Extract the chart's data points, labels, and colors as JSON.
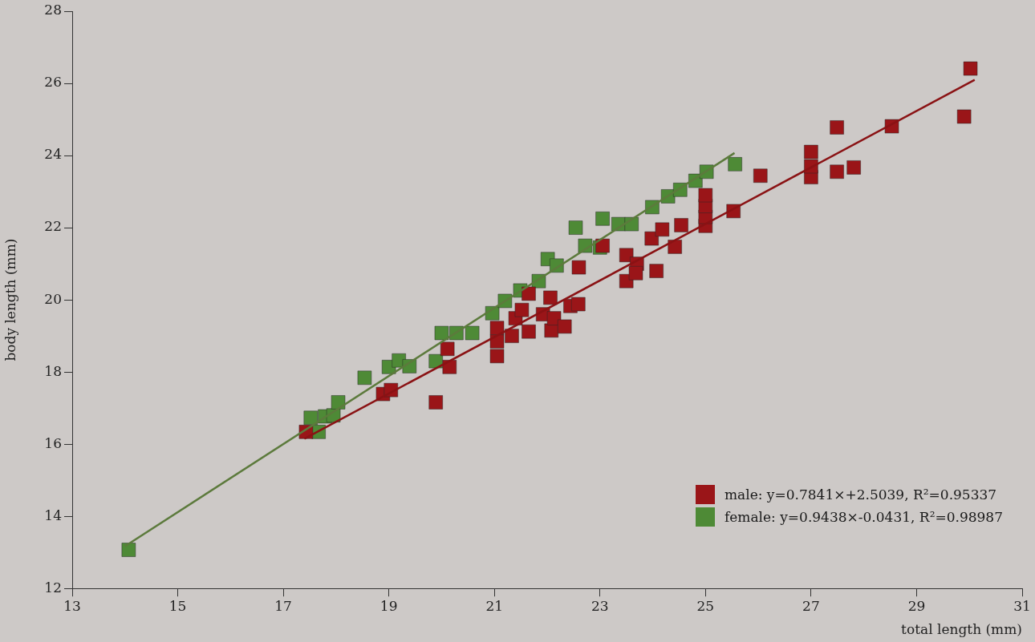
{
  "chart_data": {
    "type": "scatter",
    "xlabel": "total length (mm)",
    "ylabel": "body length (mm)",
    "xlim": [
      13,
      31
    ],
    "xticks": [
      13,
      15,
      17,
      19,
      21,
      23,
      25,
      27,
      29,
      31
    ],
    "ylim": [
      12,
      28
    ],
    "yticks": [
      12,
      14,
      16,
      18,
      20,
      22,
      24,
      26,
      28
    ],
    "grid": false,
    "legend": "bottom right",
    "marker": "square",
    "series": [
      {
        "name": "male: y=0.7841×+2.5039, R²=0.95337",
        "color": "#9a1518",
        "x": [
          17.43,
          18.89,
          19.04,
          19.89,
          20.11,
          20.15,
          21.05,
          21.05,
          21.05,
          21.33,
          21.4,
          21.52,
          21.65,
          21.65,
          21.92,
          22.06,
          22.08,
          22.13,
          22.33,
          22.44,
          22.59,
          22.6,
          23.05,
          23.5,
          23.5,
          23.7,
          23.68,
          23.98,
          24.07,
          24.18,
          24.42,
          24.54,
          25.0,
          25.0,
          25.0,
          25.0,
          25.53,
          26.04,
          27.0,
          27.0,
          27.0,
          27.49,
          27.49,
          27.81,
          28.53,
          29.9,
          30.02
        ],
        "values": [
          16.34,
          17.39,
          17.5,
          17.16,
          18.64,
          18.14,
          18.44,
          18.85,
          19.22,
          19.0,
          19.49,
          19.72,
          20.17,
          19.12,
          19.6,
          20.06,
          19.15,
          19.49,
          19.26,
          19.83,
          19.88,
          20.9,
          21.5,
          20.52,
          21.24,
          21.0,
          20.74,
          21.7,
          20.8,
          21.95,
          21.47,
          22.07,
          22.05,
          22.3,
          22.6,
          22.9,
          22.46,
          23.44,
          23.4,
          23.7,
          24.1,
          24.78,
          23.55,
          23.67,
          24.81,
          25.08,
          26.41
        ]
      },
      {
        "name": "female: y=0.9438×-0.0431, R²=0.98987",
        "color": "#4e8a36",
        "x": [
          14.07,
          17.52,
          17.67,
          17.79,
          17.95,
          18.04,
          18.54,
          19.0,
          19.19,
          19.39,
          19.89,
          20.0,
          20.28,
          20.58,
          20.96,
          21.2,
          21.49,
          21.84,
          22.01,
          22.18,
          22.54,
          22.72,
          23.0,
          23.05,
          23.35,
          23.6,
          23.99,
          24.29,
          24.52,
          24.81,
          25.02,
          25.56
        ],
        "values": [
          13.07,
          16.73,
          16.34,
          16.77,
          16.8,
          17.16,
          17.84,
          18.14,
          18.32,
          18.16,
          18.3,
          19.08,
          19.08,
          19.08,
          19.63,
          19.97,
          20.26,
          20.52,
          21.13,
          20.95,
          22.0,
          21.5,
          21.45,
          22.25,
          22.1,
          22.1,
          22.57,
          22.87,
          23.05,
          23.3,
          23.55,
          23.76
        ]
      },
      {
        "type": "line",
        "marker": "none",
        "color": "#8a1214",
        "x": [
          17.4,
          30.1
        ],
        "values": [
          16.15,
          26.1
        ]
      },
      {
        "type": "line",
        "marker": "none",
        "color": "#5c7a3c",
        "x": [
          14.0,
          25.55
        ],
        "values": [
          13.17,
          24.07
        ]
      }
    ]
  }
}
